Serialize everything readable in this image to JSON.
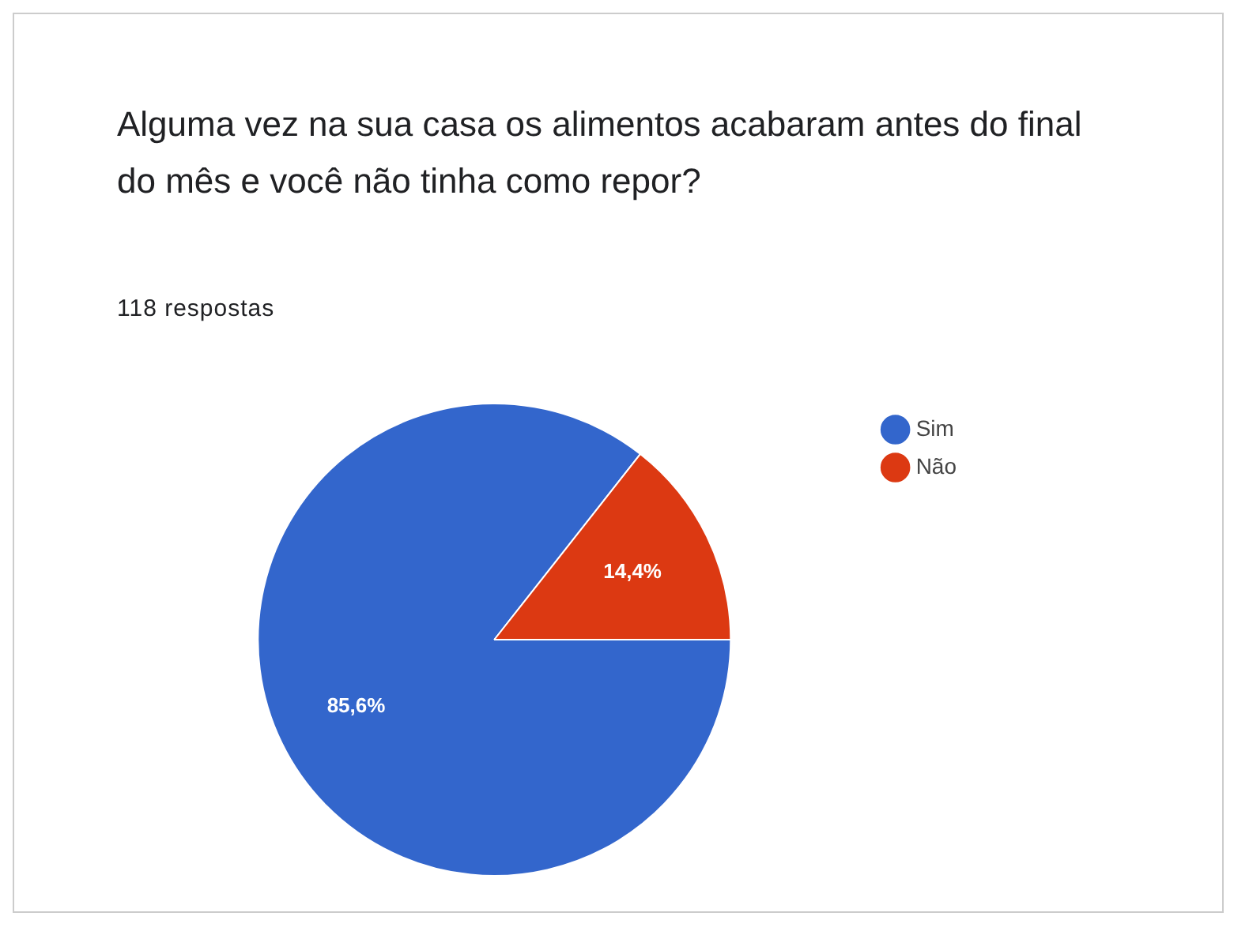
{
  "chart_data": {
    "type": "pie",
    "title": "Alguma vez na sua casa os alimentos acabaram antes do final do mês e você não tinha como repor?",
    "subtitle": "118 respostas",
    "categories": [
      "Sim",
      "Não"
    ],
    "values": [
      85.6,
      14.4
    ],
    "colors": [
      "#3366cc",
      "#dc3912"
    ],
    "value_labels": [
      "85,6%",
      "14,4%"
    ],
    "legend": "top right"
  }
}
